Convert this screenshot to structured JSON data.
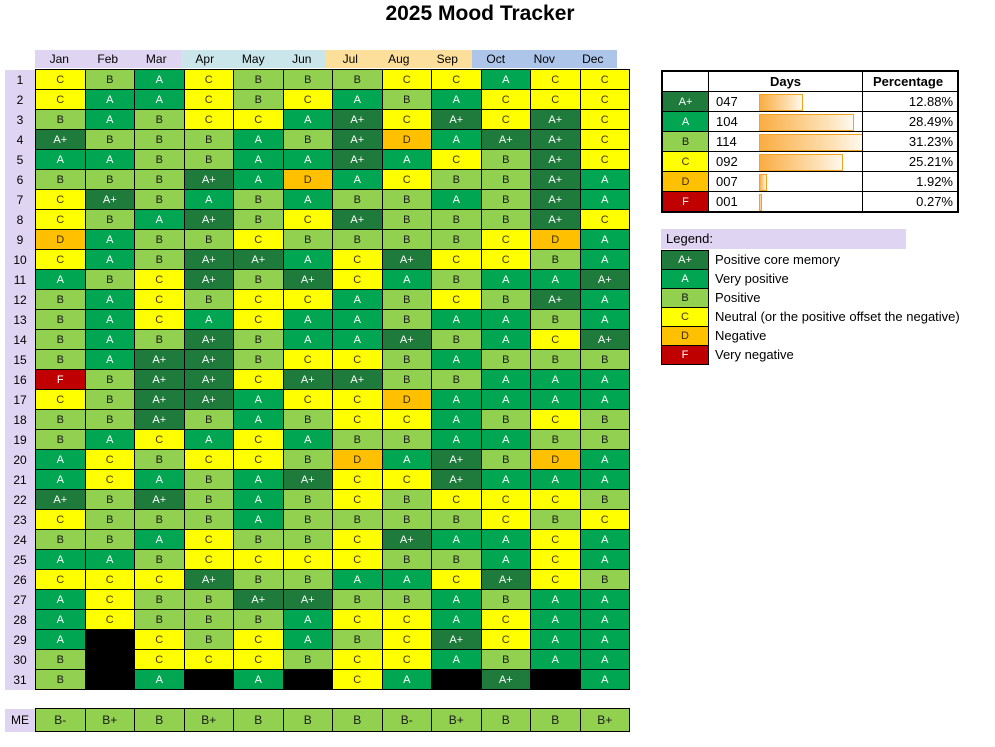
{
  "chart_data": {
    "type": "heatmap",
    "title": "2025 Mood Tracker",
    "months": [
      "Jan",
      "Feb",
      "Mar",
      "Apr",
      "May",
      "Jun",
      "Jul",
      "Aug",
      "Sep",
      "Oct",
      "Nov",
      "Dec"
    ],
    "day_numbers": [
      "1",
      "2",
      "3",
      "4",
      "5",
      "6",
      "7",
      "8",
      "9",
      "10",
      "11",
      "12",
      "13",
      "14",
      "15",
      "16",
      "17",
      "18",
      "19",
      "20",
      "21",
      "22",
      "23",
      "24",
      "25",
      "26",
      "27",
      "28",
      "29",
      "30",
      "31"
    ],
    "me_label": "ME",
    "grid": [
      [
        "C",
        "B",
        "A",
        "C",
        "B",
        "B",
        "B",
        "C",
        "C",
        "A",
        "C",
        "C"
      ],
      [
        "C",
        "A",
        "A",
        "C",
        "B",
        "C",
        "A",
        "B",
        "A",
        "C",
        "C",
        "C"
      ],
      [
        "B",
        "A",
        "B",
        "C",
        "C",
        "A",
        "A+",
        "C",
        "A+",
        "C",
        "A+",
        "C"
      ],
      [
        "A+",
        "B",
        "B",
        "B",
        "A",
        "B",
        "A+",
        "D",
        "A",
        "A+",
        "A+",
        "C"
      ],
      [
        "A",
        "A",
        "B",
        "B",
        "A",
        "A",
        "A+",
        "A",
        "C",
        "B",
        "A+",
        "C"
      ],
      [
        "B",
        "B",
        "B",
        "A+",
        "A",
        "D",
        "A",
        "C",
        "B",
        "B",
        "A+",
        "A"
      ],
      [
        "C",
        "A+",
        "B",
        "A",
        "B",
        "A",
        "B",
        "B",
        "A",
        "B",
        "A+",
        "A"
      ],
      [
        "C",
        "B",
        "A",
        "A+",
        "B",
        "C",
        "A+",
        "B",
        "B",
        "B",
        "A+",
        "C"
      ],
      [
        "D",
        "A",
        "B",
        "B",
        "C",
        "B",
        "B",
        "B",
        "B",
        "C",
        "D",
        "A"
      ],
      [
        "C",
        "A",
        "B",
        "A+",
        "A+",
        "A",
        "C",
        "A+",
        "C",
        "C",
        "B",
        "A"
      ],
      [
        "A",
        "B",
        "C",
        "A+",
        "B",
        "A+",
        "C",
        "A",
        "B",
        "A",
        "A",
        "A+"
      ],
      [
        "B",
        "A",
        "C",
        "B",
        "C",
        "C",
        "A",
        "B",
        "C",
        "B",
        "A+",
        "A"
      ],
      [
        "B",
        "A",
        "C",
        "A",
        "C",
        "A",
        "A",
        "B",
        "A",
        "A",
        "B",
        "A"
      ],
      [
        "B",
        "A",
        "B",
        "A+",
        "B",
        "A",
        "A",
        "A+",
        "B",
        "A",
        "C",
        "A+"
      ],
      [
        "B",
        "A",
        "A+",
        "A+",
        "B",
        "C",
        "C",
        "B",
        "A",
        "B",
        "B",
        "B"
      ],
      [
        "F",
        "B",
        "A+",
        "A+",
        "C",
        "A+",
        "A+",
        "B",
        "B",
        "A",
        "A",
        "A"
      ],
      [
        "C",
        "B",
        "A+",
        "A+",
        "A",
        "C",
        "C",
        "D",
        "A",
        "A",
        "A",
        "A"
      ],
      [
        "B",
        "B",
        "A+",
        "B",
        "A",
        "B",
        "C",
        "C",
        "A",
        "B",
        "C",
        "B"
      ],
      [
        "B",
        "A",
        "C",
        "A",
        "C",
        "A",
        "B",
        "B",
        "A",
        "A",
        "B",
        "B"
      ],
      [
        "A",
        "C",
        "B",
        "C",
        "C",
        "B",
        "D",
        "A",
        "A+",
        "B",
        "D",
        "A"
      ],
      [
        "A",
        "C",
        "A",
        "B",
        "A",
        "A+",
        "C",
        "C",
        "A+",
        "A",
        "A",
        "A"
      ],
      [
        "A+",
        "B",
        "A+",
        "B",
        "A",
        "B",
        "C",
        "B",
        "C",
        "C",
        "C",
        "B"
      ],
      [
        "C",
        "B",
        "B",
        "B",
        "A",
        "B",
        "B",
        "B",
        "B",
        "C",
        "B",
        "C"
      ],
      [
        "B",
        "B",
        "A",
        "C",
        "B",
        "B",
        "C",
        "A+",
        "A",
        "A",
        "C",
        "A"
      ],
      [
        "A",
        "A",
        "B",
        "C",
        "C",
        "C",
        "C",
        "B",
        "B",
        "A",
        "C",
        "A"
      ],
      [
        "C",
        "C",
        "C",
        "A+",
        "B",
        "B",
        "A",
        "A",
        "C",
        "A+",
        "C",
        "B"
      ],
      [
        "A",
        "C",
        "B",
        "B",
        "A+",
        "A+",
        "B",
        "B",
        "A",
        "B",
        "A",
        "A"
      ],
      [
        "A",
        "C",
        "B",
        "B",
        "B",
        "A",
        "C",
        "C",
        "A",
        "C",
        "A",
        "A"
      ],
      [
        "A",
        null,
        "C",
        "B",
        "C",
        "A",
        "B",
        "C",
        "A+",
        "C",
        "A",
        "A"
      ],
      [
        "B",
        null,
        "C",
        "C",
        "C",
        "B",
        "C",
        "C",
        "A",
        "B",
        "A",
        "A"
      ],
      [
        "B",
        null,
        "A",
        null,
        "A",
        null,
        "C",
        "A",
        null,
        "A+",
        null,
        "A"
      ]
    ],
    "me_row": [
      "B-",
      "B+",
      "B",
      "B+",
      "B",
      "B",
      "B",
      "B-",
      "B+",
      "B",
      "B",
      "B+"
    ],
    "summary_table": {
      "days_header": "Days",
      "percentage_header": "Percentage",
      "max_days": 114,
      "rows": [
        {
          "grade": "A+",
          "days_label": "047",
          "days": 47,
          "percentage": "12.88%"
        },
        {
          "grade": "A",
          "days_label": "104",
          "days": 104,
          "percentage": "28.49%"
        },
        {
          "grade": "B",
          "days_label": "114",
          "days": 114,
          "percentage": "31.23%"
        },
        {
          "grade": "C",
          "days_label": "092",
          "days": 92,
          "percentage": "25.21%"
        },
        {
          "grade": "D",
          "days_label": "007",
          "days": 7,
          "percentage": "1.92%"
        },
        {
          "grade": "F",
          "days_label": "001",
          "days": 1,
          "percentage": "0.27%"
        }
      ]
    },
    "legend": {
      "title": "Legend:",
      "items": [
        {
          "grade": "A+",
          "label": "Positive core memory"
        },
        {
          "grade": "A",
          "label": "Very positive"
        },
        {
          "grade": "B",
          "label": "Positive"
        },
        {
          "grade": "C",
          "label": "Neutral (or the positive offset the negative)"
        },
        {
          "grade": "D",
          "label": "Negative"
        },
        {
          "grade": "F",
          "label": "Very negative"
        }
      ]
    },
    "colors": {
      "grades": {
        "A+": {
          "bg": "#1E7B3C",
          "text": "#FFFFFF"
        },
        "A": {
          "bg": "#00A651",
          "text": "#FFFFFF"
        },
        "B": {
          "bg": "#92D050",
          "text": "#1A1A1A"
        },
        "C": {
          "bg": "#FFFF00",
          "text": "#433300"
        },
        "D": {
          "bg": "#FFC000",
          "text": "#3D2B00"
        },
        "F": {
          "bg": "#C00000",
          "text": "#FFFFFF"
        }
      },
      "missing_day": "#000000",
      "quarter_headers": [
        "#DFD4F1",
        "#CBE6EB",
        "#FBDF9B",
        "#ADC5E9"
      ],
      "row_label_bg": "#DFD4F1",
      "bar_fill_start": "#FAAD42",
      "bar_fill_end": "#FFF9EF",
      "bar_border": "#F4A11D"
    }
  }
}
